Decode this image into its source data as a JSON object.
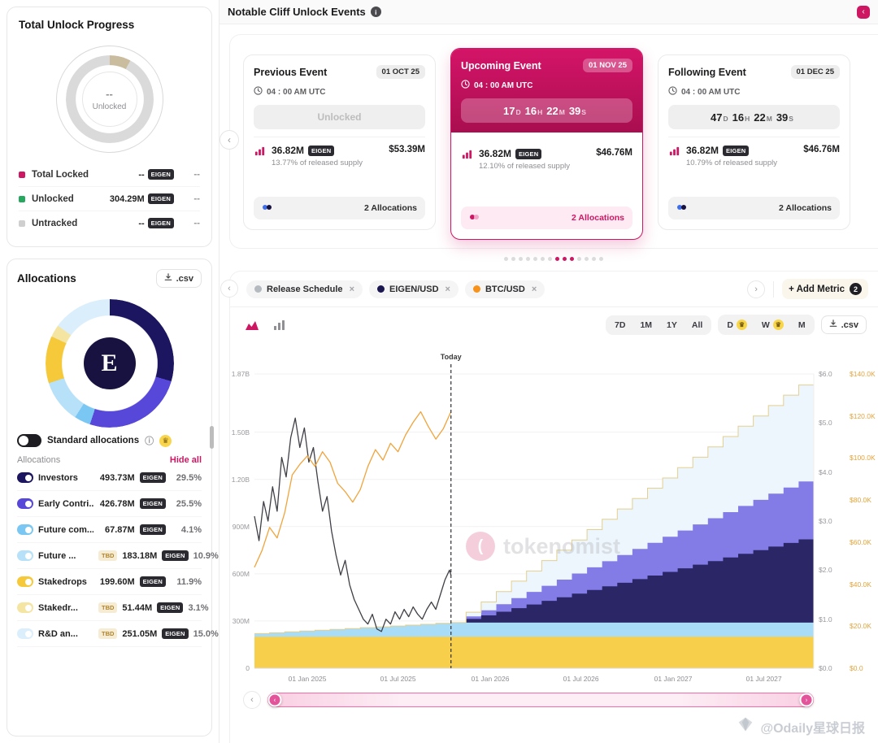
{
  "accent": "#ce1763",
  "icons": {
    "chevron_left": "‹",
    "chevron_right": "›",
    "close": "×",
    "info": "i",
    "crown": "♛",
    "collapse": "‹"
  },
  "header": {
    "title": "Notable Cliff Unlock Events"
  },
  "sidebar": {
    "progress": {
      "title": "Total Unlock Progress",
      "ring_value": "--",
      "ring_label": "Unlocked",
      "rows": [
        {
          "label": "Total Locked",
          "value": "--",
          "badge": "EIGEN",
          "right": "--",
          "color": "#ce1763"
        },
        {
          "label": "Unlocked",
          "value": "304.29M",
          "badge": "EIGEN",
          "right": "--",
          "color": "#27a85f"
        },
        {
          "label": "Untracked",
          "value": "--",
          "badge": "EIGEN",
          "right": "--",
          "color": "#cfcfcf"
        }
      ]
    },
    "allocations": {
      "title": "Allocations",
      "csv_label": ".csv",
      "logo_letter": "E",
      "toggle_label": "Standard allocations",
      "list_title": "Allocations",
      "hide_all": "Hide all",
      "tbd_label": "TBD",
      "items": [
        {
          "name": "Investors",
          "value": "493.73M",
          "badge": "EIGEN",
          "pct": "29.5%",
          "color": "#1c1660",
          "tbd": false
        },
        {
          "name": "Early Contri...",
          "value": "426.78M",
          "badge": "EIGEN",
          "pct": "25.5%",
          "color": "#5748d9",
          "tbd": false
        },
        {
          "name": "Future com...",
          "value": "67.87M",
          "badge": "EIGEN",
          "pct": "4.1%",
          "color": "#79c7f2",
          "tbd": false
        },
        {
          "name": "Future ...",
          "value": "183.18M",
          "badge": "EIGEN",
          "pct": "10.9%",
          "color": "#b7e1f8",
          "tbd": true
        },
        {
          "name": "Stakedrops",
          "value": "199.60M",
          "badge": "EIGEN",
          "pct": "11.9%",
          "color": "#f6c93a",
          "tbd": false
        },
        {
          "name": "Stakedr...",
          "value": "51.44M",
          "badge": "EIGEN",
          "pct": "3.1%",
          "color": "#f5e5a2",
          "tbd": true
        },
        {
          "name": "R&D an...",
          "value": "251.05M",
          "badge": "EIGEN",
          "pct": "15.0%",
          "color": "#daeefb",
          "tbd": true
        }
      ]
    }
  },
  "events": {
    "cards": [
      {
        "title": "Previous Event",
        "date": "01 OCT 25",
        "time": "04 : 00 AM UTC",
        "status": "Unlocked",
        "amount": "36.82M",
        "badge": "EIGEN",
        "supply": "13.77% of released supply",
        "usd": "$53.39M",
        "allocations": "2 Allocations"
      },
      {
        "title": "Upcoming Event",
        "date": "01 NOV 25",
        "time": "04 : 00 AM UTC",
        "countdown": [
          {
            "v": "17",
            "u": "D"
          },
          {
            "v": "16",
            "u": "H"
          },
          {
            "v": "22",
            "u": "M"
          },
          {
            "v": "39",
            "u": "S"
          }
        ],
        "amount": "36.82M",
        "badge": "EIGEN",
        "supply": "12.10% of released supply",
        "usd": "$46.76M",
        "allocations": "2 Allocations"
      },
      {
        "title": "Following Event",
        "date": "01 DEC 25",
        "time": "04 : 00 AM UTC",
        "countdown": [
          {
            "v": "47",
            "u": "D"
          },
          {
            "v": "16",
            "u": "H"
          },
          {
            "v": "22",
            "u": "M"
          },
          {
            "v": "39",
            "u": "S"
          }
        ],
        "amount": "36.82M",
        "badge": "EIGEN",
        "supply": "10.79% of released supply",
        "usd": "$46.76M",
        "allocations": "2 Allocations"
      }
    ],
    "dots": {
      "count": 14,
      "active": [
        7,
        8,
        9
      ]
    }
  },
  "chart_panel": {
    "chips": [
      {
        "label": "Release Schedule",
        "dot": "#b4bac0"
      },
      {
        "label": "EIGEN/USD",
        "dot": "#1a1650"
      },
      {
        "label": "BTC/USD",
        "dot": "#f7931a"
      }
    ],
    "add_metric": {
      "label": "+ Add Metric",
      "count": "2"
    },
    "ranges": [
      "7D",
      "1M",
      "1Y",
      "All"
    ],
    "granularity": [
      {
        "label": "D",
        "crown": true
      },
      {
        "label": "W",
        "crown": true
      },
      {
        "label": "M",
        "crown": false
      }
    ],
    "csv_label": ".csv",
    "watermark": "tokenomist"
  },
  "chart_data": {
    "type": "area",
    "x_max": 37,
    "today_t": 13,
    "today_label": "Today",
    "left_max": 1.87,
    "usd_max": 6,
    "btc_max": 140,
    "x_ticks": [
      {
        "t": 3.5,
        "label": "01 Jan 2025"
      },
      {
        "t": 9.5,
        "label": "01 Jul 2025"
      },
      {
        "t": 15.6,
        "label": "01 Jan 2026"
      },
      {
        "t": 21.6,
        "label": "01 Jul 2026"
      },
      {
        "t": 27.7,
        "label": "01 Jan 2027"
      },
      {
        "t": 33.7,
        "label": "01 Jul 2027"
      }
    ],
    "y_left_ticks": [
      {
        "v": 1.87,
        "label": "1.87B"
      },
      {
        "v": 1.5,
        "label": "1.50B"
      },
      {
        "v": 1.2,
        "label": "1.20B"
      },
      {
        "v": 0.9,
        "label": "900M"
      },
      {
        "v": 0.6,
        "label": "600M"
      },
      {
        "v": 0.3,
        "label": "300M"
      },
      {
        "v": 0,
        "label": "0"
      }
    ],
    "y_usd_ticks": [
      {
        "v": 6,
        "label": "$6.0"
      },
      {
        "v": 5,
        "label": "$5.0"
      },
      {
        "v": 4,
        "label": "$4.0"
      },
      {
        "v": 3,
        "label": "$3.0"
      },
      {
        "v": 2,
        "label": "$2.0"
      },
      {
        "v": 1,
        "label": "$1.0"
      },
      {
        "v": 0,
        "label": "$0.0"
      }
    ],
    "y_btc_ticks": [
      {
        "v": 140,
        "label": "$140.0K"
      },
      {
        "v": 120,
        "label": "$120.0K"
      },
      {
        "v": 100,
        "label": "$100.0K"
      },
      {
        "v": 80,
        "label": "$80.0K"
      },
      {
        "v": 60,
        "label": "$60.0K"
      },
      {
        "v": 40,
        "label": "$40.0K"
      },
      {
        "v": 20,
        "label": "$20.0K"
      },
      {
        "v": 0,
        "label": "$0.0"
      }
    ],
    "stacks": [
      {
        "name": "Stakedrops",
        "fill": "#f7cf4a",
        "values": [
          0.2,
          0.2,
          0.2,
          0.2,
          0.2,
          0.2,
          0.2,
          0.2,
          0.2,
          0.2,
          0.2,
          0.2,
          0.2,
          0.2,
          0.2,
          0.2,
          0.2,
          0.2,
          0.2,
          0.2,
          0.2,
          0.2,
          0.2,
          0.2,
          0.2,
          0.2,
          0.2,
          0.2,
          0.2,
          0.2,
          0.2,
          0.2,
          0.2,
          0.2,
          0.2,
          0.2,
          0.2,
          0.2
        ]
      },
      {
        "name": "Future community",
        "fill": "#a9dcf6",
        "values": [
          0.02,
          0.025,
          0.031,
          0.036,
          0.042,
          0.047,
          0.052,
          0.058,
          0.063,
          0.068,
          0.074,
          0.079,
          0.085,
          0.09,
          0.09,
          0.09,
          0.09,
          0.09,
          0.09,
          0.09,
          0.09,
          0.09,
          0.09,
          0.09,
          0.09,
          0.09,
          0.09,
          0.09,
          0.09,
          0.09,
          0.09,
          0.09,
          0.09,
          0.09,
          0.09,
          0.09,
          0.09,
          0.09
        ]
      },
      {
        "name": "Investors",
        "fill": "#2b2766",
        "values": [
          0,
          0,
          0,
          0,
          0,
          0,
          0,
          0,
          0,
          0,
          0,
          0,
          0,
          0,
          0.023,
          0.046,
          0.069,
          0.092,
          0.115,
          0.138,
          0.161,
          0.184,
          0.207,
          0.23,
          0.253,
          0.276,
          0.299,
          0.322,
          0.345,
          0.368,
          0.391,
          0.414,
          0.437,
          0.46,
          0.483,
          0.506,
          0.529,
          0.552
        ]
      },
      {
        "name": "Early Contributors",
        "fill": "#837be6",
        "values": [
          0,
          0,
          0,
          0,
          0,
          0,
          0,
          0,
          0,
          0,
          0,
          0,
          0,
          0,
          0.016,
          0.032,
          0.048,
          0.064,
          0.08,
          0.096,
          0.112,
          0.128,
          0.144,
          0.16,
          0.176,
          0.192,
          0.208,
          0.224,
          0.24,
          0.256,
          0.272,
          0.288,
          0.304,
          0.32,
          0.336,
          0.352,
          0.368,
          0.384
        ]
      },
      {
        "name": "Future TBD",
        "fill": "#edf6fd",
        "stroke": "#e3cf8e",
        "values": [
          0,
          0,
          0,
          0,
          0,
          0,
          0,
          0,
          0,
          0,
          0,
          0,
          0,
          0,
          0.027,
          0.053,
          0.08,
          0.107,
          0.133,
          0.16,
          0.187,
          0.213,
          0.24,
          0.267,
          0.293,
          0.32,
          0.347,
          0.373,
          0.4,
          0.427,
          0.453,
          0.48,
          0.507,
          0.533,
          0.56,
          0.587,
          0.613,
          0.64
        ]
      }
    ],
    "lines": [
      {
        "name": "EIGEN/USD",
        "color": "#3f3f46",
        "axis": "usd",
        "points": [
          [
            0,
            3.1
          ],
          [
            0.3,
            2.6
          ],
          [
            0.6,
            3.4
          ],
          [
            0.9,
            3.0
          ],
          [
            1.2,
            3.7
          ],
          [
            1.5,
            3.2
          ],
          [
            1.8,
            4.3
          ],
          [
            2.1,
            3.9
          ],
          [
            2.4,
            4.7
          ],
          [
            2.7,
            5.1
          ],
          [
            3,
            4.5
          ],
          [
            3.3,
            4.9
          ],
          [
            3.6,
            4.2
          ],
          [
            3.9,
            4.5
          ],
          [
            4.2,
            3.8
          ],
          [
            4.5,
            3.2
          ],
          [
            4.8,
            3.5
          ],
          [
            5.1,
            2.8
          ],
          [
            5.4,
            2.3
          ],
          [
            5.7,
            1.9
          ],
          [
            6,
            2.2
          ],
          [
            6.3,
            1.7
          ],
          [
            6.6,
            1.4
          ],
          [
            6.9,
            1.2
          ],
          [
            7.2,
            1.0
          ],
          [
            7.5,
            0.9
          ],
          [
            7.8,
            1.1
          ],
          [
            8.1,
            0.8
          ],
          [
            8.4,
            0.75
          ],
          [
            8.7,
            1.0
          ],
          [
            9,
            0.9
          ],
          [
            9.3,
            1.15
          ],
          [
            9.6,
            1.0
          ],
          [
            9.9,
            1.2
          ],
          [
            10.2,
            1.05
          ],
          [
            10.5,
            1.25
          ],
          [
            10.8,
            1.1
          ],
          [
            11.1,
            1.0
          ],
          [
            11.4,
            1.2
          ],
          [
            11.7,
            1.35
          ],
          [
            12,
            1.2
          ],
          [
            12.3,
            1.5
          ],
          [
            12.6,
            1.8
          ],
          [
            12.9,
            2.0
          ],
          [
            13,
            1.9
          ]
        ]
      },
      {
        "name": "BTC/USD",
        "color": "#f0a43c",
        "axis": "btc",
        "points": [
          [
            0,
            48
          ],
          [
            0.5,
            56
          ],
          [
            1,
            67
          ],
          [
            1.5,
            62
          ],
          [
            2,
            74
          ],
          [
            2.5,
            92
          ],
          [
            3,
            97
          ],
          [
            3.5,
            101
          ],
          [
            4,
            96
          ],
          [
            4.5,
            103
          ],
          [
            5,
            98
          ],
          [
            5.5,
            88
          ],
          [
            6,
            84
          ],
          [
            6.5,
            79
          ],
          [
            7,
            85
          ],
          [
            7.5,
            96
          ],
          [
            8,
            104
          ],
          [
            8.5,
            99
          ],
          [
            9,
            107
          ],
          [
            9.5,
            103
          ],
          [
            10,
            111
          ],
          [
            10.5,
            117
          ],
          [
            11,
            122
          ],
          [
            11.5,
            115
          ],
          [
            12,
            109
          ],
          [
            12.5,
            114
          ],
          [
            13,
            122
          ]
        ]
      }
    ]
  },
  "overlay_watermark": "@Odaily星球日报"
}
